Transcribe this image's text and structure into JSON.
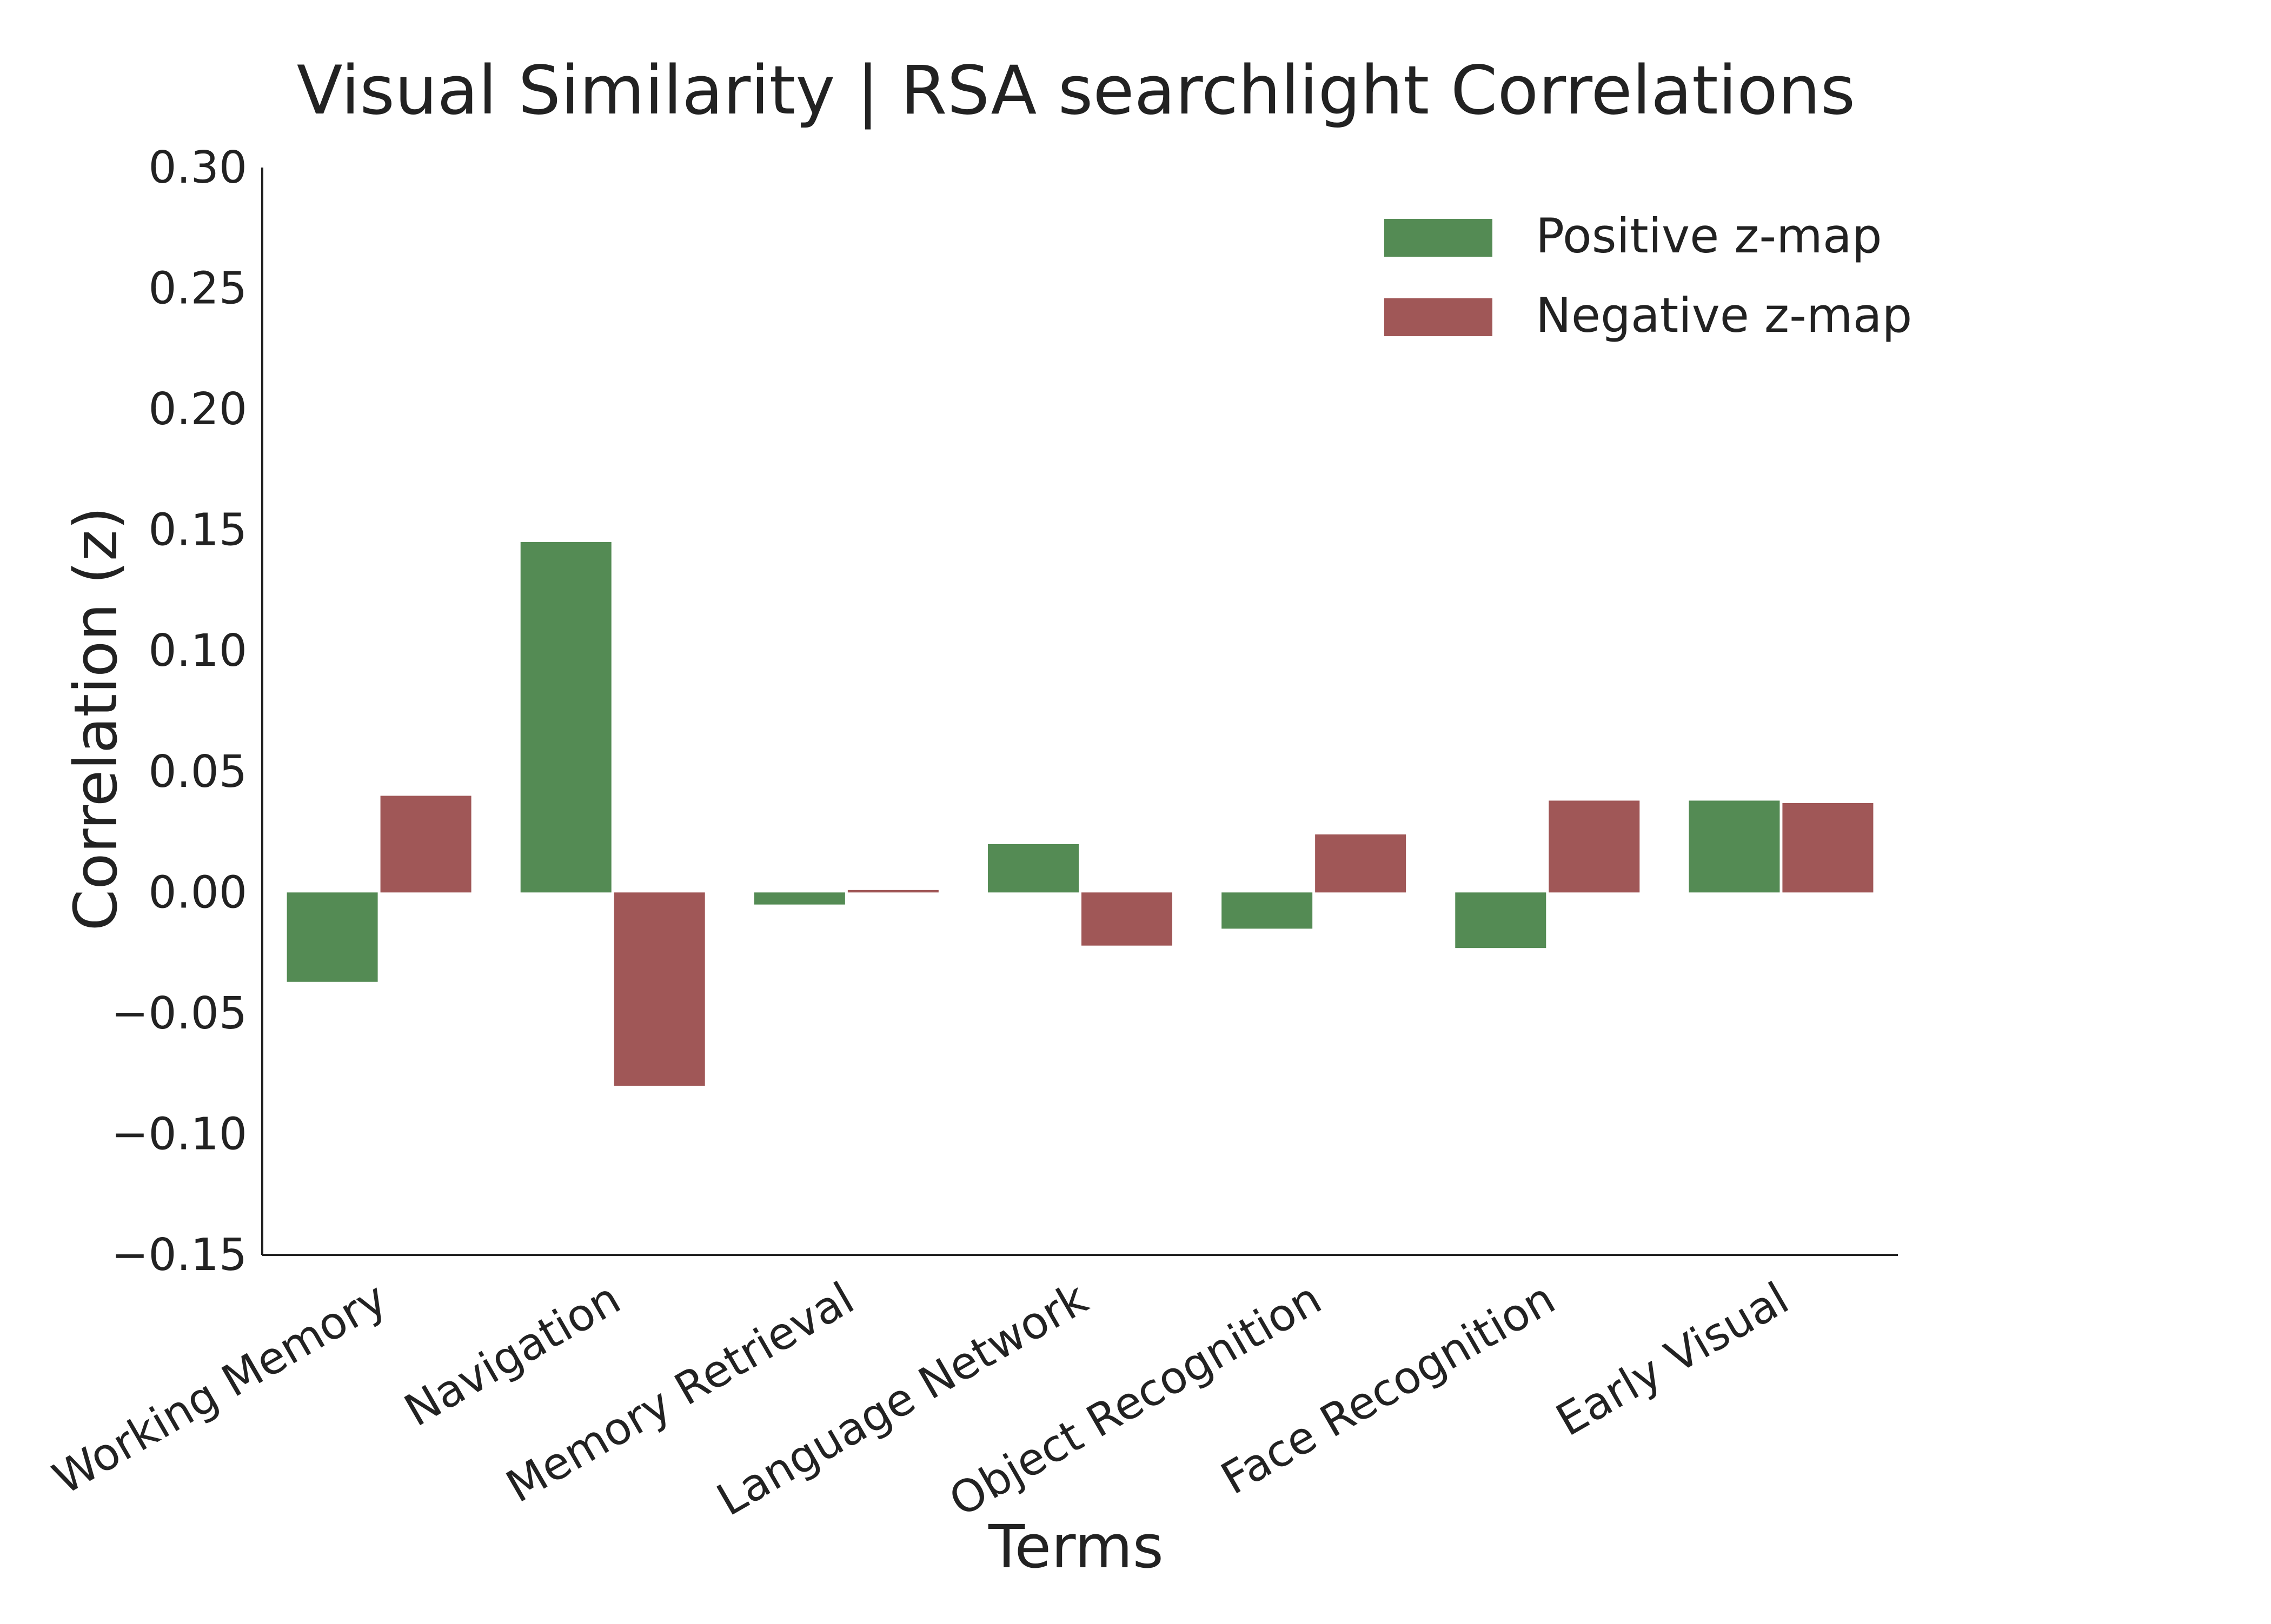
{
  "chart_data": {
    "type": "bar",
    "title": "Visual Similarity | RSA searchlight Correlations",
    "xlabel": "Terms",
    "ylabel": "Correlation (z)",
    "ylim": [
      -0.15,
      0.3
    ],
    "yticks": [
      -0.15,
      -0.1,
      -0.05,
      0.0,
      0.05,
      0.1,
      0.15,
      0.2,
      0.25,
      0.3
    ],
    "ytick_labels": [
      "−0.15",
      "−0.10",
      "−0.05",
      "0.00",
      "0.05",
      "0.10",
      "0.15",
      "0.20",
      "0.25",
      "0.30"
    ],
    "categories": [
      "Working Memory",
      "Navigation",
      "Memory Retrieval",
      "Language Network",
      "Object Recognition",
      "Face Recognition",
      "Early Visual"
    ],
    "series": [
      {
        "name": "Positive z-map",
        "color": "#548b54",
        "values": [
          -0.037,
          0.145,
          -0.005,
          0.02,
          -0.015,
          -0.023,
          0.038
        ]
      },
      {
        "name": "Negative z-map",
        "color": "#a05757",
        "values": [
          0.04,
          -0.08,
          0.001,
          -0.022,
          0.024,
          0.038,
          0.037
        ]
      }
    ],
    "legend_position": "top-right",
    "grid": false
  }
}
